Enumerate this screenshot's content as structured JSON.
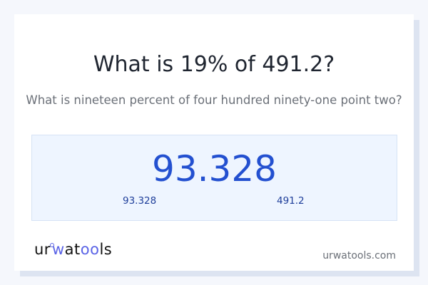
{
  "header": {
    "title": "What is 19% of 491.2?",
    "subtitle": "What is nineteen percent of four hundred ninety-one point two?"
  },
  "result": {
    "value": "93.328",
    "part": "93.328",
    "whole": "491.2"
  },
  "footer": {
    "logo_text": "urwatools",
    "logo_parts": [
      "ur",
      "w",
      "at",
      "oo",
      "ls"
    ],
    "domain": "urwatools.com"
  },
  "colors": {
    "accent": "#2350d0",
    "logo_accent": "#5a63e6",
    "result_bg": "#eef5ff",
    "shadow": "#dde4f1"
  }
}
